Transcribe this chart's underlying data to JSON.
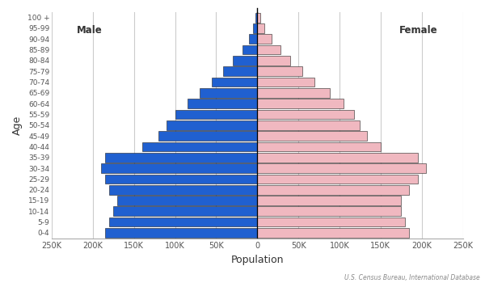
{
  "age_groups": [
    "0-4",
    "5-9",
    "10-14",
    "15-19",
    "20-24",
    "25-29",
    "30-34",
    "35-39",
    "40-44",
    "45-49",
    "50-54",
    "55-59",
    "60-64",
    "65-69",
    "70-74",
    "75-79",
    "80-84",
    "85-89",
    "90-94",
    "95-99",
    "100 +"
  ],
  "male": [
    185000,
    180000,
    175000,
    170000,
    180000,
    185000,
    190000,
    185000,
    140000,
    120000,
    110000,
    100000,
    85000,
    70000,
    55000,
    42000,
    30000,
    18000,
    10000,
    5000,
    2000
  ],
  "female": [
    185000,
    180000,
    175000,
    175000,
    185000,
    195000,
    205000,
    195000,
    150000,
    133000,
    125000,
    118000,
    105000,
    88000,
    70000,
    55000,
    40000,
    28000,
    17000,
    9000,
    4000
  ],
  "male_color": "#2060d0",
  "female_color": "#f0b8c0",
  "edge_color": "#222222",
  "xlabel": "Population",
  "ylabel": "Age",
  "xlim": 250000,
  "xtick_vals": [
    -250000,
    -200000,
    -150000,
    -100000,
    -50000,
    0,
    50000,
    100000,
    150000,
    200000,
    250000
  ],
  "xtick_labels": [
    "250K",
    "200K",
    "150K",
    "100K",
    "50K",
    "0",
    "50K",
    "100K",
    "150K",
    "200K",
    "250K"
  ],
  "male_label": "Male",
  "female_label": "Female",
  "source_text": "U.S. Census Bureau, International Database",
  "bg_color": "#ffffff",
  "grid_color": "#cccccc"
}
